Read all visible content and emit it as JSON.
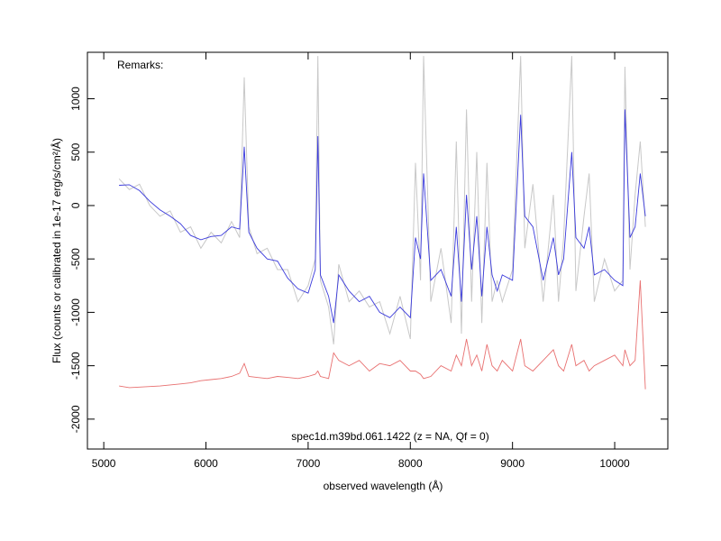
{
  "chart_data": {
    "type": "line",
    "remarks": "Remarks:",
    "annotation": "spec1d.m39bd.061.1422 (z =   NA, Qf = 0)",
    "xlabel": "observed wavelength (Å)",
    "ylabel": "Flux (counts or calibrated in 1e-17 erg/s/cm²/Å)",
    "xlim": [
      4840,
      10520
    ],
    "ylim": [
      -2280,
      1435
    ],
    "xticks": [
      5000,
      6000,
      7000,
      8000,
      9000,
      10000
    ],
    "yticks": [
      -2000,
      -1500,
      -1000,
      -500,
      0,
      500,
      1000
    ],
    "x": [
      5150,
      5250,
      5350,
      5450,
      5550,
      5650,
      5750,
      5850,
      5950,
      6050,
      6150,
      6250,
      6330,
      6375,
      6420,
      6500,
      6600,
      6700,
      6800,
      6900,
      7000,
      7070,
      7095,
      7120,
      7200,
      7250,
      7300,
      7400,
      7500,
      7600,
      7700,
      7800,
      7900,
      8000,
      8050,
      8100,
      8130,
      8200,
      8300,
      8400,
      8450,
      8500,
      8550,
      8600,
      8650,
      8700,
      8750,
      8800,
      8850,
      8900,
      9000,
      9080,
      9120,
      9200,
      9300,
      9400,
      9450,
      9500,
      9580,
      9620,
      9700,
      9750,
      9800,
      9900,
      10000,
      10080,
      10100,
      10150,
      10200,
      10250,
      10300
    ],
    "series": [
      {
        "color": "#c8c8c8",
        "values": [
          250,
          150,
          200,
          0,
          -100,
          -50,
          -250,
          -200,
          -400,
          -250,
          -350,
          -150,
          -300,
          1200,
          -200,
          -450,
          -400,
          -600,
          -600,
          -900,
          -750,
          -500,
          1400,
          -700,
          -950,
          -1300,
          -550,
          -900,
          -800,
          -950,
          -900,
          -1200,
          -850,
          -1250,
          400,
          -700,
          1400,
          -900,
          -400,
          -1100,
          600,
          -1200,
          900,
          -900,
          500,
          -1100,
          400,
          -900,
          -700,
          -900,
          -600,
          1400,
          -400,
          200,
          -900,
          100,
          -900,
          -300,
          1400,
          -800,
          -100,
          300,
          -900,
          -500,
          -800,
          -700,
          1300,
          -600,
          100,
          600,
          -200
        ]
      },
      {
        "color": "#3a3adc",
        "values": [
          190,
          195,
          140,
          40,
          -40,
          -100,
          -170,
          -280,
          -320,
          -290,
          -280,
          -200,
          -220,
          550,
          -250,
          -400,
          -500,
          -520,
          -680,
          -780,
          -820,
          -600,
          650,
          -650,
          -850,
          -1100,
          -650,
          -800,
          -900,
          -850,
          -1000,
          -1050,
          -950,
          -1050,
          -300,
          -500,
          300,
          -700,
          -600,
          -850,
          -200,
          -900,
          100,
          -600,
          -100,
          -850,
          -200,
          -650,
          -800,
          -650,
          -700,
          850,
          -100,
          -200,
          -700,
          -300,
          -650,
          -500,
          500,
          -300,
          -400,
          -200,
          -650,
          -600,
          -700,
          -750,
          900,
          -300,
          -200,
          300,
          -100
        ]
      },
      {
        "color": "#e87070",
        "values": [
          -1690,
          -1705,
          -1700,
          -1695,
          -1690,
          -1680,
          -1670,
          -1660,
          -1640,
          -1630,
          -1620,
          -1600,
          -1570,
          -1480,
          -1600,
          -1610,
          -1620,
          -1600,
          -1610,
          -1620,
          -1600,
          -1580,
          -1550,
          -1600,
          -1620,
          -1380,
          -1450,
          -1500,
          -1450,
          -1550,
          -1480,
          -1500,
          -1450,
          -1550,
          -1550,
          -1580,
          -1620,
          -1600,
          -1500,
          -1550,
          -1400,
          -1500,
          -1250,
          -1500,
          -1400,
          -1550,
          -1300,
          -1500,
          -1550,
          -1450,
          -1550,
          -1250,
          -1500,
          -1550,
          -1450,
          -1350,
          -1500,
          -1550,
          -1300,
          -1500,
          -1450,
          -1550,
          -1500,
          -1450,
          -1400,
          -1500,
          -1350,
          -1500,
          -1450,
          -700,
          -1720
        ]
      }
    ]
  }
}
